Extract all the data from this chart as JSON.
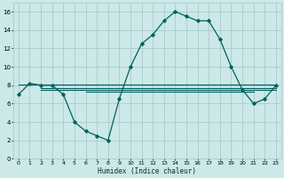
{
  "xlabel": "Humidex (Indice chaleur)",
  "background_color": "#cce8e8",
  "grid_color": "#aacccc",
  "line_color": "#006060",
  "xlim": [
    -0.5,
    23.5
  ],
  "ylim": [
    0,
    17
  ],
  "yticks": [
    0,
    2,
    4,
    6,
    8,
    10,
    12,
    14,
    16
  ],
  "xticks": [
    0,
    1,
    2,
    3,
    4,
    5,
    6,
    7,
    8,
    9,
    10,
    11,
    12,
    13,
    14,
    15,
    16,
    17,
    18,
    19,
    20,
    21,
    22,
    23
  ],
  "main_line_x": [
    0,
    1,
    2,
    3,
    4,
    5,
    6,
    7,
    8,
    9,
    10,
    11,
    12,
    13,
    14,
    15,
    16,
    17,
    18,
    19,
    20,
    21,
    22,
    23
  ],
  "main_line_y": [
    7.0,
    8.2,
    8.0,
    8.0,
    7.0,
    4.0,
    3.0,
    2.5,
    2.0,
    6.5,
    10.0,
    12.5,
    13.5,
    15.0,
    16.0,
    15.5,
    15.0,
    15.0,
    13.0,
    10.0,
    7.5,
    6.0,
    6.5,
    8.0
  ],
  "flat_line1_y": 8.1,
  "flat_line1_x": [
    0,
    23
  ],
  "flat_line2_y": 7.7,
  "flat_line2_x": [
    2,
    23
  ],
  "flat_line3_y": 7.5,
  "flat_line3_x": [
    2,
    23
  ],
  "flat_line4_y": 7.3,
  "flat_line4_x": [
    6,
    21
  ]
}
